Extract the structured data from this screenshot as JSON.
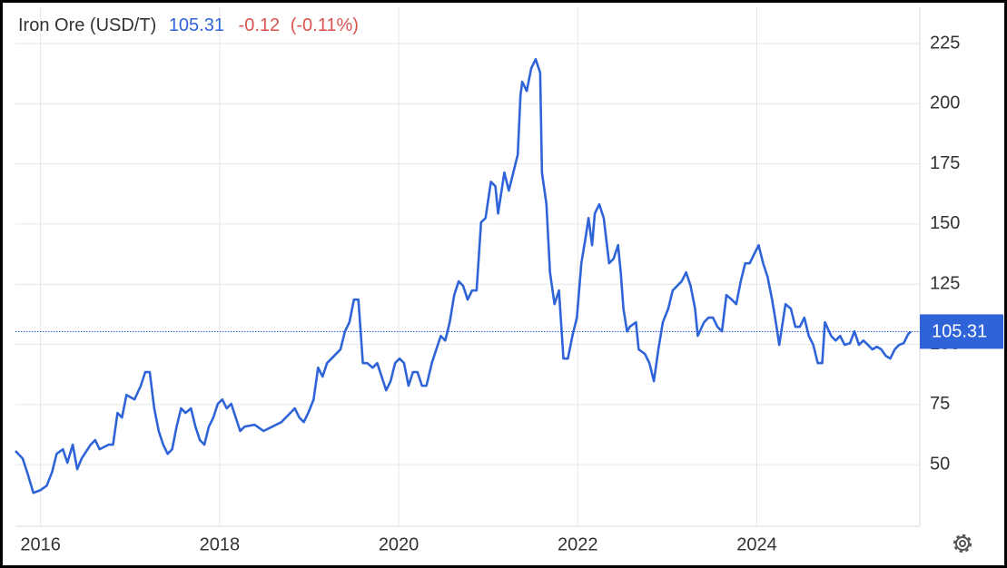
{
  "chart_data": {
    "type": "line",
    "title": "Iron Ore (USD/T)",
    "last_value": 105.31,
    "change": -0.12,
    "change_percent": -0.11,
    "change_percent_label": "(-0.11%)",
    "x": [
      2015.72,
      2015.8,
      2015.85,
      2015.92,
      2016.0,
      2016.07,
      2016.13,
      2016.18,
      2016.25,
      2016.3,
      2016.36,
      2016.41,
      2016.46,
      2016.56,
      2016.61,
      2016.66,
      2016.76,
      2016.81,
      2016.86,
      2016.91,
      2016.96,
      2017.05,
      2017.12,
      2017.17,
      2017.22,
      2017.27,
      2017.32,
      2017.37,
      2017.42,
      2017.47,
      2017.52,
      2017.57,
      2017.62,
      2017.68,
      2017.73,
      2017.78,
      2017.83,
      2017.88,
      2017.93,
      2017.98,
      2018.03,
      2018.08,
      2018.13,
      2018.18,
      2018.23,
      2018.28,
      2018.39,
      2018.49,
      2018.59,
      2018.69,
      2018.79,
      2018.84,
      2018.89,
      2018.94,
      2018.99,
      2019.05,
      2019.1,
      2019.15,
      2019.2,
      2019.25,
      2019.35,
      2019.4,
      2019.45,
      2019.5,
      2019.55,
      2019.6,
      2019.65,
      2019.71,
      2019.76,
      2019.81,
      2019.86,
      2019.91,
      2019.96,
      2020.01,
      2020.06,
      2020.11,
      2020.16,
      2020.21,
      2020.26,
      2020.31,
      2020.37,
      2020.42,
      2020.47,
      2020.52,
      2020.57,
      2020.62,
      2020.67,
      2020.72,
      2020.77,
      2020.82,
      2020.87,
      2020.92,
      2020.97,
      2021.03,
      2021.08,
      2021.11,
      2021.18,
      2021.23,
      2021.28,
      2021.33,
      2021.36,
      2021.38,
      2021.43,
      2021.48,
      2021.53,
      2021.58,
      2021.6,
      2021.65,
      2021.69,
      2021.74,
      2021.79,
      2021.84,
      2021.89,
      2021.94,
      2021.99,
      2022.04,
      2022.09,
      2022.12,
      2022.16,
      2022.19,
      2022.24,
      2022.29,
      2022.35,
      2022.4,
      2022.45,
      2022.48,
      2022.51,
      2022.55,
      2022.58,
      2022.65,
      2022.68,
      2022.75,
      2022.8,
      2022.85,
      2022.9,
      2022.95,
      2023.01,
      2023.06,
      2023.11,
      2023.16,
      2023.21,
      2023.26,
      2023.31,
      2023.34,
      2023.41,
      2023.46,
      2023.51,
      2023.56,
      2023.61,
      2023.66,
      2023.72,
      2023.77,
      2023.82,
      2023.87,
      2023.92,
      2023.97,
      2024.02,
      2024.07,
      2024.12,
      2024.17,
      2024.22,
      2024.25,
      2024.32,
      2024.38,
      2024.43,
      2024.48,
      2024.53,
      2024.58,
      2024.63,
      2024.68,
      2024.73,
      2024.76,
      2024.83,
      2024.88,
      2024.93,
      2024.98,
      2025.04,
      2025.09,
      2025.14,
      2025.19,
      2025.24,
      2025.29,
      2025.34,
      2025.39,
      2025.44,
      2025.49,
      2025.54,
      2025.59,
      2025.64,
      2025.69,
      2025.72
    ],
    "series": [
      {
        "name": "Iron Ore (USD/T)",
        "color": "#2f64d8",
        "values": [
          55.7,
          52.6,
          47,
          38.3,
          39.4,
          41.3,
          47,
          54.5,
          56.4,
          50.8,
          58.3,
          48.1,
          52.6,
          58.3,
          60.2,
          56.4,
          58.3,
          58.3,
          71.5,
          69.6,
          79,
          77.1,
          82.8,
          88.5,
          88.5,
          73.4,
          64,
          58.3,
          54.5,
          56.4,
          65.8,
          73.4,
          71.5,
          73.4,
          65.8,
          60.2,
          58.3,
          65.8,
          69.6,
          75.3,
          77.1,
          73.4,
          75.3,
          69.6,
          64,
          65.8,
          66.6,
          64,
          65.8,
          67.7,
          71.5,
          73.4,
          69.6,
          67.7,
          71.5,
          77.1,
          90.3,
          86.6,
          92.2,
          94.1,
          97.9,
          105.4,
          109.2,
          118.6,
          118.6,
          92.2,
          92.2,
          90.3,
          92.2,
          86.6,
          80.9,
          84.7,
          92.2,
          94.1,
          92.2,
          82.8,
          88.5,
          88.5,
          82.8,
          82.8,
          92.2,
          97.9,
          103.5,
          101.6,
          109.2,
          120.5,
          126.2,
          124.3,
          118.6,
          122.4,
          122.4,
          150.7,
          152.5,
          167.6,
          165.7,
          154.4,
          171.4,
          163.9,
          171.4,
          178.9,
          203.4,
          209.1,
          205.3,
          214.7,
          218.5,
          212.9,
          171.4,
          158.2,
          129.9,
          116.7,
          122.4,
          94.1,
          94.1,
          103.5,
          111.1,
          133.7,
          145,
          152.5,
          141.2,
          154.4,
          158.2,
          152.5,
          133.7,
          135.6,
          141.2,
          129.9,
          114.8,
          105.4,
          107.3,
          109.2,
          97.9,
          96,
          92.2,
          84.7,
          97.9,
          109.2,
          114.8,
          122.4,
          124.3,
          126.2,
          129.9,
          124.3,
          114.8,
          103.5,
          109.2,
          111.1,
          111.1,
          107.3,
          105.4,
          120.5,
          118.6,
          116.7,
          126.2,
          133.7,
          133.7,
          137.5,
          141.2,
          133.7,
          128,
          118.6,
          107.3,
          99.8,
          116.7,
          114.8,
          107.3,
          107.3,
          111.1,
          103.5,
          99.8,
          92.2,
          92.2,
          109.2,
          103.5,
          101.6,
          103.5,
          99.8,
          100.5,
          105.4,
          99.8,
          101.6,
          99.8,
          97.9,
          99,
          97.9,
          95.2,
          94.1,
          97.9,
          99.8,
          100.5,
          104.3,
          105.31
        ]
      }
    ],
    "xlim": [
      2015.72,
      2025.82
    ],
    "xticks": [
      2016,
      2018,
      2020,
      2022,
      2024
    ],
    "ylim": [
      24.4,
      240.1
    ],
    "yticks": [
      50,
      75,
      100,
      125,
      150,
      175,
      200,
      225
    ],
    "grid": true
  }
}
